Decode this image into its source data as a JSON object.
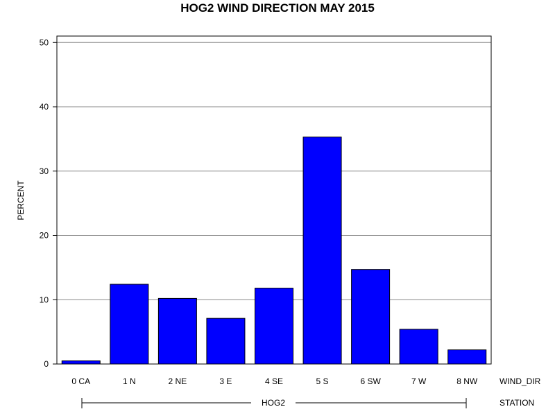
{
  "chart_data": {
    "type": "bar",
    "title": "HOG2 WIND DIRECTION MAY 2015",
    "ylabel": "PERCENT",
    "xlabel": "WIND_DIR",
    "group_label": "STATION",
    "group_name": "HOG2",
    "categories": [
      "0 CA",
      "1 N",
      "2 NE",
      "3 E",
      "4 SE",
      "5 S",
      "6 SW",
      "7 W",
      "8 NW"
    ],
    "values": [
      0.5,
      12.4,
      10.2,
      7.1,
      11.8,
      35.3,
      14.7,
      5.4,
      2.2
    ],
    "ylim": [
      0,
      51
    ],
    "yticks": [
      0,
      10,
      20,
      30,
      40,
      50
    ],
    "grid": true,
    "bar_color": "#0000ff"
  }
}
